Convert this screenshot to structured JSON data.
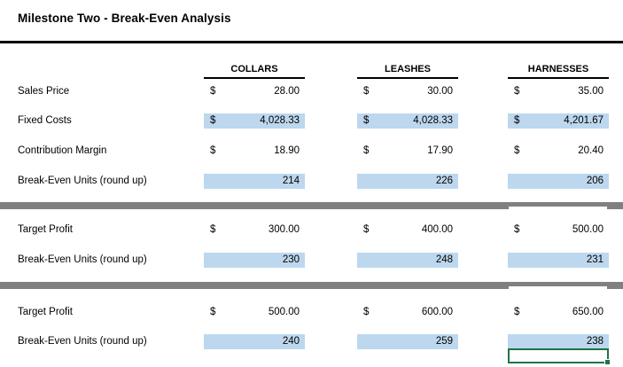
{
  "title": "Milestone Two - Break-Even Analysis",
  "currency_symbol": "$",
  "columns": [
    {
      "label": "COLLARS"
    },
    {
      "label": "LEASHES"
    },
    {
      "label": "HARNESSES"
    }
  ],
  "sections": [
    {
      "rows": [
        {
          "label": "Sales Price",
          "currency": true,
          "highlighted": false,
          "values": [
            "28.00",
            "30.00",
            "35.00"
          ]
        },
        {
          "label": "Fixed Costs",
          "currency": true,
          "highlighted": true,
          "values": [
            "4,028.33",
            "4,028.33",
            "4,201.67"
          ]
        },
        {
          "label": "Contribution Margin",
          "currency": true,
          "highlighted": false,
          "values": [
            "18.90",
            "17.90",
            "20.40"
          ]
        },
        {
          "label": "Break-Even Units (round up)",
          "currency": false,
          "highlighted": true,
          "values": [
            "214",
            "226",
            "206"
          ]
        }
      ]
    },
    {
      "rows": [
        {
          "label": "Target Profit",
          "currency": true,
          "highlighted": false,
          "values": [
            "300.00",
            "400.00",
            "500.00"
          ]
        },
        {
          "label": "Break-Even Units (round up)",
          "currency": false,
          "highlighted": true,
          "values": [
            "230",
            "248",
            "231"
          ]
        }
      ]
    },
    {
      "rows": [
        {
          "label": "Target Profit",
          "currency": true,
          "highlighted": false,
          "values": [
            "500.00",
            "600.00",
            "650.00"
          ]
        },
        {
          "label": "Break-Even Units (round up)",
          "currency": false,
          "highlighted": true,
          "values": [
            "240",
            "259",
            "238"
          ]
        }
      ]
    }
  ],
  "colors": {
    "highlight_fill": "#BDD7EE",
    "divider_gray": "#808080",
    "selection_green": "#217346",
    "text": "#000000"
  }
}
